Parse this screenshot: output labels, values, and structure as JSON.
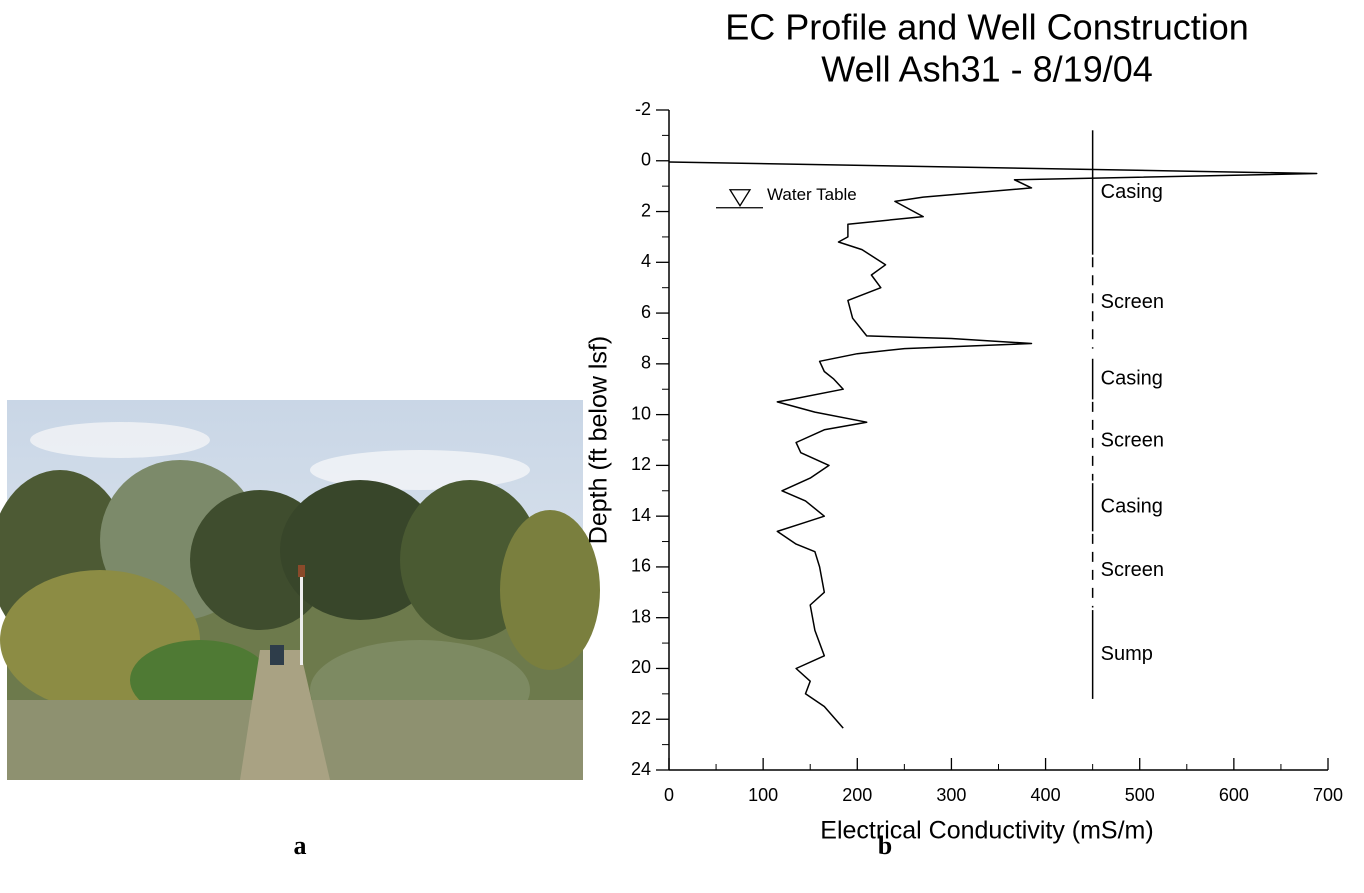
{
  "photo_caption": "a",
  "chart_caption": "b",
  "chart_data": {
    "type": "line",
    "title": [
      "EC Profile and Well Construction",
      "Well Ash31 - 8/19/04"
    ],
    "x_label": "Electrical Conductivity (mS/m)",
    "y_label": "Depth (ft below lsf)",
    "xlim": [
      0,
      700
    ],
    "xticks": [
      0,
      100,
      200,
      300,
      400,
      500,
      600,
      700
    ],
    "ylim": [
      -2,
      24
    ],
    "yticks": [
      -2,
      0,
      2,
      4,
      6,
      8,
      10,
      12,
      14,
      16,
      18,
      20,
      22,
      24
    ],
    "y_inverted": true,
    "color": "#000000",
    "x": [
      0,
      688,
      367,
      385,
      270,
      240,
      250,
      270,
      190,
      190,
      180,
      205,
      230,
      215,
      225,
      190,
      195,
      210,
      300,
      385,
      250,
      200,
      160,
      165,
      175,
      185,
      130,
      115,
      155,
      210,
      165,
      135,
      140,
      170,
      150,
      120,
      145,
      165,
      140,
      115,
      135,
      155,
      160,
      165,
      150,
      155,
      165,
      135,
      150,
      145,
      165,
      185
    ],
    "values": [
      0.05,
      0.5,
      0.75,
      1.07,
      1.43,
      1.6,
      1.8,
      2.2,
      2.5,
      3.0,
      3.2,
      3.5,
      4.1,
      4.5,
      5.0,
      5.5,
      6.2,
      6.9,
      7.0,
      7.2,
      7.4,
      7.6,
      7.9,
      8.3,
      8.6,
      9.0,
      9.4,
      9.5,
      9.9,
      10.3,
      10.6,
      11.1,
      11.5,
      12.0,
      12.5,
      13.0,
      13.4,
      14.0,
      14.3,
      14.6,
      15.1,
      15.4,
      16.0,
      17.0,
      17.5,
      18.5,
      19.5,
      20.0,
      20.5,
      21.0,
      21.5,
      22.35
    ],
    "well": {
      "x": 450,
      "segments": [
        {
          "label": "Casing",
          "top": -1.2,
          "bottom": 3.7,
          "style": "solid"
        },
        {
          "label": "Screen",
          "top": 3.8,
          "bottom": 7.4,
          "style": "dashed"
        },
        {
          "label": "Casing",
          "top": 7.8,
          "bottom": 9.4,
          "style": "solid"
        },
        {
          "label": "Screen",
          "top": 9.5,
          "bottom": 12.6,
          "style": "dashed"
        },
        {
          "label": "Casing",
          "top": 12.7,
          "bottom": 14.6,
          "style": "solid"
        },
        {
          "label": "Screen",
          "top": 14.7,
          "bottom": 17.6,
          "style": "dashed"
        },
        {
          "label": "Sump",
          "top": 17.7,
          "bottom": 21.2,
          "style": "solid"
        }
      ]
    },
    "water_table": {
      "label": "Water Table",
      "depth": 1.85
    }
  }
}
